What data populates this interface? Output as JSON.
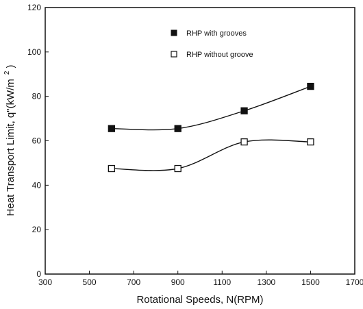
{
  "chart_data": {
    "type": "line",
    "title": "",
    "xlabel": "Rotational Speeds, N(RPM)",
    "ylabel": "Heat Transport Limit, q\"(kW/m",
    "ylabel_superscript": "2",
    "ylabel_close": ")",
    "xlim": [
      300,
      1700
    ],
    "ylim": [
      0,
      120
    ],
    "xticks": [
      300,
      500,
      700,
      900,
      1100,
      1300,
      1500,
      1700
    ],
    "yticks": [
      0,
      20,
      40,
      60,
      80,
      100,
      120
    ],
    "grid": false,
    "legend_position": "top-right inside",
    "series": [
      {
        "name": "RHP with grooves",
        "marker": "filled-square",
        "color": "#111111",
        "x": [
          600,
          900,
          1200,
          1500
        ],
        "y": [
          65.5,
          65.5,
          73.5,
          84.5
        ]
      },
      {
        "name": "RHP without groove",
        "marker": "open-square",
        "color": "#111111",
        "x": [
          600,
          900,
          1200,
          1500
        ],
        "y": [
          47.5,
          47.5,
          59.5,
          59.5
        ]
      }
    ]
  }
}
